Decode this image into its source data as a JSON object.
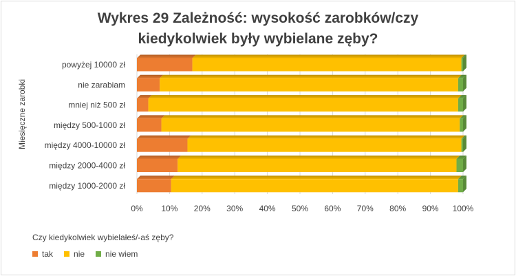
{
  "chart_data": {
    "type": "bar",
    "orientation": "horizontal",
    "stacked": "percent",
    "title_line1": "Wykres 29 Zależność: wysokość zarobków/czy",
    "title_line2": "kiedykolwiek były wybielane zęby?",
    "ylabel": "Miesięczne zarobki",
    "categories": [
      "powyżej 10000 zł",
      "nie zarabiam",
      "mniej niż 500 zł",
      "między 500-1000 zł",
      "między 4000-10000 zł",
      "między 2000-4000 zł",
      "między 1000-2000 zł"
    ],
    "series": [
      {
        "name": "tak",
        "color": "#ED7D31",
        "values": [
          17,
          7,
          3.5,
          7.5,
          15.5,
          12.5,
          10.5
        ]
      },
      {
        "name": "nie",
        "color": "#FFC000",
        "values": [
          82.5,
          91.5,
          95,
          91.5,
          84,
          85.5,
          88
        ]
      },
      {
        "name": "nie wiem",
        "color": "#70AD47",
        "values": [
          0.5,
          1.5,
          1.5,
          1,
          0.5,
          2,
          1.5
        ]
      }
    ],
    "xlim": [
      0,
      100
    ],
    "xticks": [
      "0%",
      "10%",
      "20%",
      "30%",
      "40%",
      "50%",
      "60%",
      "70%",
      "80%",
      "90%",
      "100%"
    ],
    "grid": true,
    "legend_title": "Czy kiedykolwiek wybielałeś/-aś zęby?",
    "legend_position": "bottom-left"
  }
}
